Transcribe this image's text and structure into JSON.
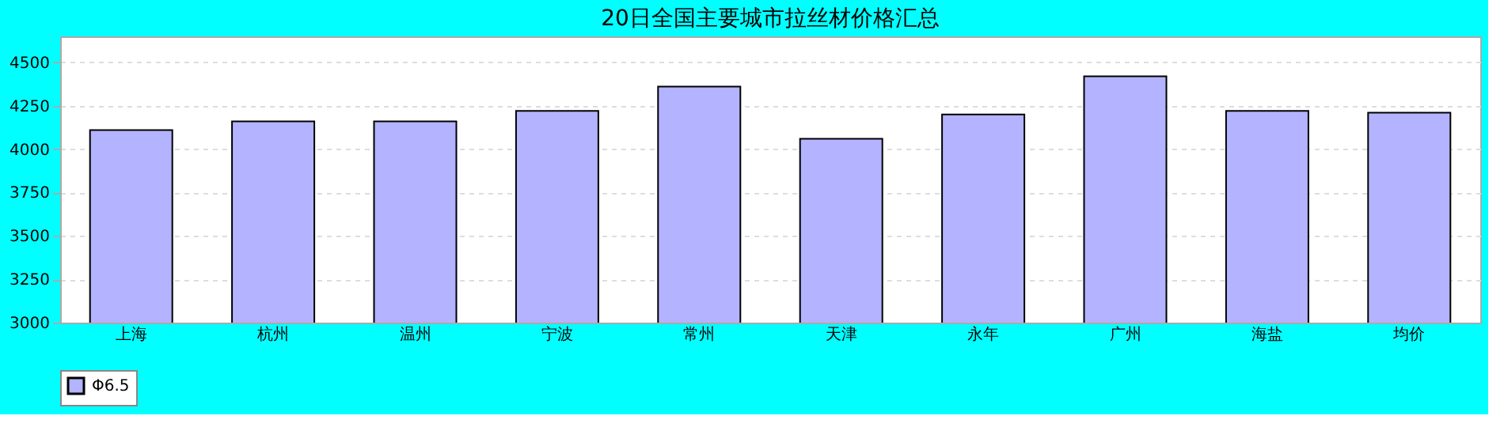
{
  "chart_data": {
    "type": "bar",
    "title": "20日全国主要城市拉丝材价格汇总",
    "categories": [
      "上海",
      "杭州",
      "温州",
      "宁波",
      "常州",
      "天津",
      "永年",
      "广州",
      "海盐",
      "均价"
    ],
    "series": [
      {
        "name": "Φ6.5",
        "color": "#b3b3ff",
        "values": [
          4110,
          4160,
          4160,
          4220,
          4360,
          4060,
          4200,
          4420,
          4220,
          4210
        ]
      }
    ],
    "ylim": [
      3000,
      4650
    ],
    "yticks": [
      3000,
      3250,
      3500,
      3750,
      4000,
      4250,
      4500
    ],
    "grid": "y",
    "legend": "bottom"
  }
}
